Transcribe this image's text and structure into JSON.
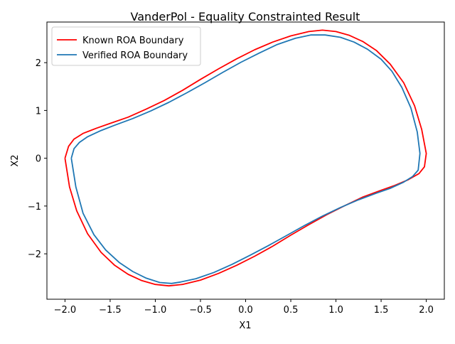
{
  "chart_data": {
    "type": "line",
    "title": "VanderPol - Equality Constrainted Result",
    "xlabel": "X1",
    "ylabel": "X2",
    "xlim": [
      -2.2,
      2.2
    ],
    "ylim": [
      -2.95,
      2.85
    ],
    "xticks": [
      -2.0,
      -1.5,
      -1.0,
      -0.5,
      0.0,
      0.5,
      1.0,
      1.5,
      2.0
    ],
    "xtick_labels": [
      "−2.0",
      "−1.5",
      "−1.0",
      "−0.5",
      "0.0",
      "0.5",
      "1.0",
      "1.5",
      "2.0"
    ],
    "yticks": [
      -2,
      -1,
      0,
      1,
      2
    ],
    "ytick_labels": [
      "−2",
      "−1",
      "0",
      "1",
      "2"
    ],
    "grid": false,
    "legend": "top-left",
    "series": [
      {
        "name": "Known ROA Boundary",
        "color": "#ff0000",
        "points": [
          [
            -2.0,
            0.0
          ],
          [
            -1.96,
            0.25
          ],
          [
            -1.9,
            0.4
          ],
          [
            -1.8,
            0.52
          ],
          [
            -1.65,
            0.63
          ],
          [
            -1.5,
            0.73
          ],
          [
            -1.3,
            0.86
          ],
          [
            -1.1,
            1.03
          ],
          [
            -0.9,
            1.21
          ],
          [
            -0.7,
            1.42
          ],
          [
            -0.5,
            1.65
          ],
          [
            -0.3,
            1.87
          ],
          [
            -0.1,
            2.08
          ],
          [
            0.1,
            2.27
          ],
          [
            0.3,
            2.43
          ],
          [
            0.5,
            2.56
          ],
          [
            0.7,
            2.65
          ],
          [
            0.85,
            2.68
          ],
          [
            1.0,
            2.65
          ],
          [
            1.15,
            2.57
          ],
          [
            1.3,
            2.44
          ],
          [
            1.45,
            2.25
          ],
          [
            1.6,
            1.97
          ],
          [
            1.75,
            1.58
          ],
          [
            1.87,
            1.1
          ],
          [
            1.95,
            0.6
          ],
          [
            2.0,
            0.1
          ],
          [
            1.98,
            -0.18
          ],
          [
            1.92,
            -0.32
          ],
          [
            1.8,
            -0.45
          ],
          [
            1.65,
            -0.57
          ],
          [
            1.5,
            -0.67
          ],
          [
            1.3,
            -0.81
          ],
          [
            1.1,
            -0.99
          ],
          [
            0.9,
            -1.18
          ],
          [
            0.7,
            -1.39
          ],
          [
            0.5,
            -1.61
          ],
          [
            0.3,
            -1.84
          ],
          [
            0.1,
            -2.05
          ],
          [
            -0.1,
            -2.24
          ],
          [
            -0.3,
            -2.41
          ],
          [
            -0.5,
            -2.55
          ],
          [
            -0.7,
            -2.64
          ],
          [
            -0.85,
            -2.67
          ],
          [
            -1.0,
            -2.64
          ],
          [
            -1.15,
            -2.56
          ],
          [
            -1.3,
            -2.43
          ],
          [
            -1.45,
            -2.24
          ],
          [
            -1.6,
            -1.97
          ],
          [
            -1.75,
            -1.58
          ],
          [
            -1.87,
            -1.1
          ],
          [
            -1.95,
            -0.6
          ],
          [
            -2.0,
            0.0
          ]
        ]
      },
      {
        "name": "Verified ROA Boundary",
        "color": "#1f77b4",
        "points": [
          [
            -1.93,
            0.0
          ],
          [
            -1.9,
            0.2
          ],
          [
            -1.84,
            0.33
          ],
          [
            -1.75,
            0.45
          ],
          [
            -1.6,
            0.58
          ],
          [
            -1.45,
            0.69
          ],
          [
            -1.25,
            0.83
          ],
          [
            -1.05,
            0.99
          ],
          [
            -0.85,
            1.17
          ],
          [
            -0.65,
            1.37
          ],
          [
            -0.45,
            1.58
          ],
          [
            -0.25,
            1.8
          ],
          [
            -0.05,
            2.01
          ],
          [
            0.15,
            2.2
          ],
          [
            0.35,
            2.38
          ],
          [
            0.55,
            2.51
          ],
          [
            0.72,
            2.58
          ],
          [
            0.88,
            2.58
          ],
          [
            1.05,
            2.53
          ],
          [
            1.2,
            2.43
          ],
          [
            1.35,
            2.28
          ],
          [
            1.5,
            2.07
          ],
          [
            1.62,
            1.82
          ],
          [
            1.73,
            1.48
          ],
          [
            1.83,
            1.05
          ],
          [
            1.9,
            0.55
          ],
          [
            1.93,
            0.1
          ],
          [
            1.91,
            -0.25
          ],
          [
            1.85,
            -0.38
          ],
          [
            1.75,
            -0.5
          ],
          [
            1.6,
            -0.63
          ],
          [
            1.45,
            -0.73
          ],
          [
            1.25,
            -0.87
          ],
          [
            1.05,
            -1.03
          ],
          [
            0.85,
            -1.21
          ],
          [
            0.65,
            -1.41
          ],
          [
            0.45,
            -1.62
          ],
          [
            0.25,
            -1.83
          ],
          [
            0.05,
            -2.03
          ],
          [
            -0.15,
            -2.22
          ],
          [
            -0.35,
            -2.39
          ],
          [
            -0.55,
            -2.52
          ],
          [
            -0.72,
            -2.59
          ],
          [
            -0.82,
            -2.62
          ],
          [
            -0.95,
            -2.6
          ],
          [
            -1.1,
            -2.51
          ],
          [
            -1.25,
            -2.37
          ],
          [
            -1.4,
            -2.18
          ],
          [
            -1.55,
            -1.92
          ],
          [
            -1.68,
            -1.6
          ],
          [
            -1.8,
            -1.15
          ],
          [
            -1.88,
            -0.6
          ],
          [
            -1.93,
            0.0
          ]
        ]
      }
    ]
  }
}
